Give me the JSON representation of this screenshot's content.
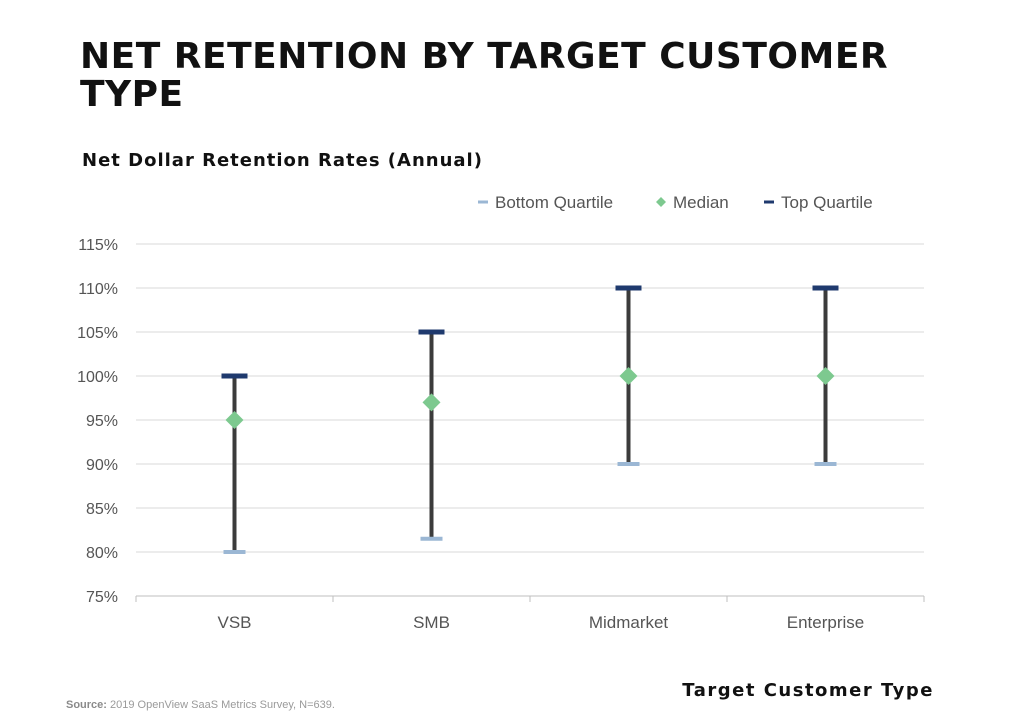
{
  "title": "NET RETENTION BY TARGET CUSTOMER TYPE",
  "subtitle": "Net Dollar Retention Rates (Annual)",
  "x_axis_title": "Target Customer Type",
  "source": {
    "label": "Source:",
    "text": "2019 OpenView SaaS Metrics Survey, N=639."
  },
  "colors": {
    "bottom_quartile": "#9bb7d4",
    "median": "#7dc98f",
    "top_quartile": "#1f3a6e",
    "whisker": "#3b3b3b",
    "grid": "#d9d9d9"
  },
  "chart_data": {
    "type": "scatter",
    "categories": [
      "VSB",
      "SMB",
      "Midmarket",
      "Enterprise"
    ],
    "series": [
      {
        "name": "Bottom Quartile",
        "values": [
          80,
          81.5,
          90,
          90
        ]
      },
      {
        "name": "Median",
        "values": [
          95,
          97,
          100,
          100
        ]
      },
      {
        "name": "Top Quartile",
        "values": [
          100,
          105,
          110,
          110
        ]
      }
    ],
    "ylim": [
      75,
      115
    ],
    "y_ticks": [
      "75%",
      "80%",
      "85%",
      "90%",
      "95%",
      "100%",
      "105%",
      "110%",
      "115%"
    ],
    "y_tick_values": [
      75,
      80,
      85,
      90,
      95,
      100,
      105,
      110,
      115
    ],
    "grid": true,
    "legend_position": "top-right"
  }
}
